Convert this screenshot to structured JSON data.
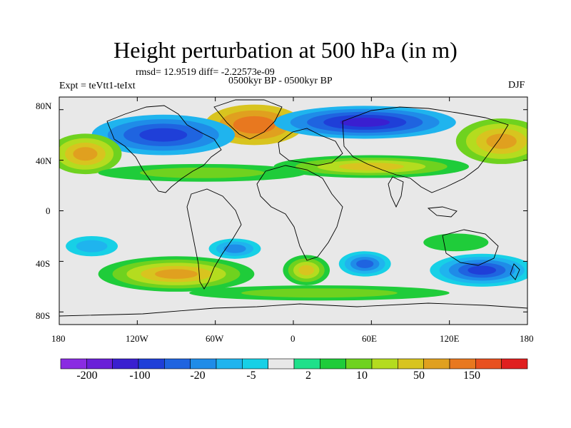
{
  "title": "Height perturbation at 500 hPa (in m)",
  "stats": "rmsd= 12.9519 diff= -2.22573e-09",
  "experiment": "Expt = teVtt1-teIxt",
  "period": "0500kyr BP - 0500kyr BP",
  "season": "DJF",
  "lat_labels": [
    "80N",
    "40N",
    "0",
    "40S",
    "80S"
  ],
  "lon_labels": [
    "180",
    "120W",
    "60W",
    "0",
    "60E",
    "120E",
    "180"
  ],
  "colorbar": {
    "labels": [
      "-200",
      "-100",
      "-20",
      "-5",
      "2",
      "10",
      "50",
      "150"
    ],
    "colors": [
      "#8a2be2",
      "#6a1fd8",
      "#3a1fd0",
      "#1f3fd8",
      "#1f64e0",
      "#1f8ce8",
      "#1fb4ee",
      "#17d0e6",
      "#e8e8e8",
      "#1fe08a",
      "#1fcc3a",
      "#6fd21f",
      "#b4dc1f",
      "#d8c41f",
      "#e0a01f",
      "#e8781f",
      "#e8501f",
      "#e01f1f"
    ]
  },
  "regions": [
    {
      "name": "greenland-high",
      "levels": [
        13,
        14,
        15
      ],
      "cx": -30,
      "cy": 68,
      "rx": 38,
      "ry": 16
    },
    {
      "name": "north-america-low",
      "levels": [
        6,
        5,
        4,
        3
      ],
      "cx": -100,
      "cy": 60,
      "rx": 55,
      "ry": 16
    },
    {
      "name": "north-pacific-high",
      "levels": [
        11,
        12,
        13,
        14
      ],
      "cx": -160,
      "cy": 45,
      "rx": 28,
      "ry": 16
    },
    {
      "name": "eurasia-low",
      "levels": [
        6,
        5,
        4,
        3,
        2
      ],
      "cx": 55,
      "cy": 70,
      "rx": 70,
      "ry": 13
    },
    {
      "name": "siberia-high",
      "levels": [
        11,
        12,
        13,
        14
      ],
      "cx": 160,
      "cy": 55,
      "rx": 35,
      "ry": 18
    },
    {
      "name": "subtropic-band-west",
      "levels": [
        10,
        11
      ],
      "cx": -70,
      "cy": 30,
      "rx": 80,
      "ry": 7
    },
    {
      "name": "subtropic-band-east",
      "levels": [
        10,
        11,
        12,
        13
      ],
      "cx": 60,
      "cy": 35,
      "rx": 75,
      "ry": 9
    },
    {
      "name": "south-pacific-high",
      "levels": [
        10,
        11,
        12,
        13,
        14
      ],
      "cx": -90,
      "cy": -50,
      "rx": 60,
      "ry": 14
    },
    {
      "name": "south-atlantic-high",
      "levels": [
        10,
        11,
        12,
        13
      ],
      "cx": 10,
      "cy": -47,
      "rx": 18,
      "ry": 12
    },
    {
      "name": "indian-ocean-low",
      "levels": [
        7,
        6,
        5,
        4
      ],
      "cx": 55,
      "cy": -42,
      "rx": 20,
      "ry": 10
    },
    {
      "name": "australia-south-low",
      "levels": [
        7,
        6,
        5,
        4,
        3
      ],
      "cx": 145,
      "cy": -47,
      "rx": 40,
      "ry": 13
    },
    {
      "name": "south-atlantic-low",
      "levels": [
        7,
        6,
        5
      ],
      "cx": -45,
      "cy": -30,
      "rx": 20,
      "ry": 8
    },
    {
      "name": "southern-band",
      "levels": [
        10,
        11
      ],
      "cx": 20,
      "cy": -65,
      "rx": 100,
      "ry": 6
    },
    {
      "name": "east-pacific-low",
      "levels": [
        7,
        6
      ],
      "cx": -155,
      "cy": -28,
      "rx": 20,
      "ry": 8
    },
    {
      "name": "tropical-green",
      "levels": [
        10
      ],
      "cx": 125,
      "cy": -25,
      "rx": 25,
      "ry": 7
    }
  ]
}
